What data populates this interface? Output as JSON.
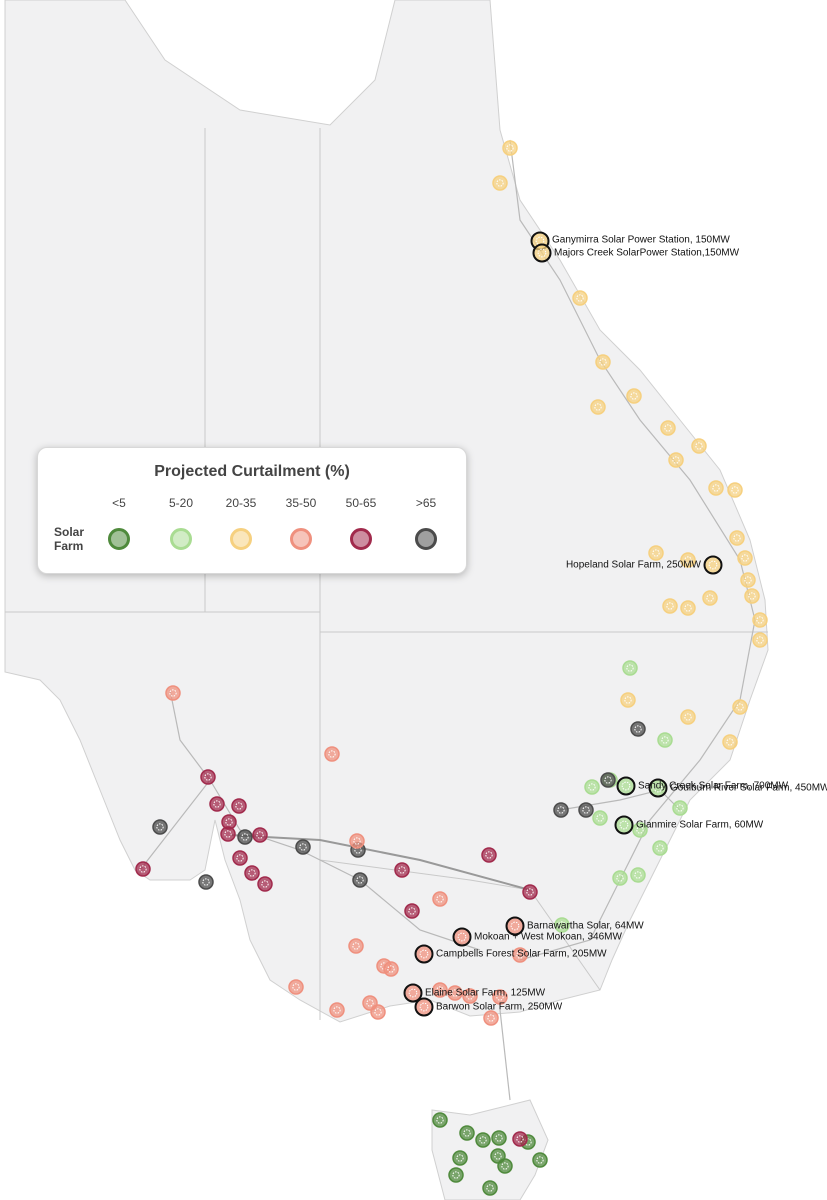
{
  "legend": {
    "title": "Projected Curtailment (%)",
    "row_label": "Solar Farm",
    "categories": [
      {
        "label": "<5",
        "color": "#4f8a3c"
      },
      {
        "label": "5-20",
        "color": "#a9dc92"
      },
      {
        "label": "20-35",
        "color": "#f6d07f"
      },
      {
        "label": "35-50",
        "color": "#ef907e"
      },
      {
        "label": "50-65",
        "color": "#a12a4c"
      },
      {
        "label": ">65",
        "color": "#4b4b4b"
      }
    ]
  },
  "labels": [
    {
      "text": "Ganymirra Solar Power Station, 150MW"
    },
    {
      "text": "Majors Creek SolarPower Station,150MW"
    },
    {
      "text": "Hopeland Solar Farm, 250MW"
    },
    {
      "text": "Sandy Creek Solar Farm, 700MW"
    },
    {
      "text": "Goulburn River Solar Farm, 450MW"
    },
    {
      "text": "Glanmire Solar Farm, 60MW"
    },
    {
      "text": "Barnawartha Solar, 64MW"
    },
    {
      "text": "Mokoan + West Mokoan, 346MW"
    },
    {
      "text": "Campbells Forest Solar Farm, 205MW"
    },
    {
      "text": "Elaine Solar Farm, 125MW"
    },
    {
      "text": "Barwon Solar Farm, 250MW"
    }
  ]
}
